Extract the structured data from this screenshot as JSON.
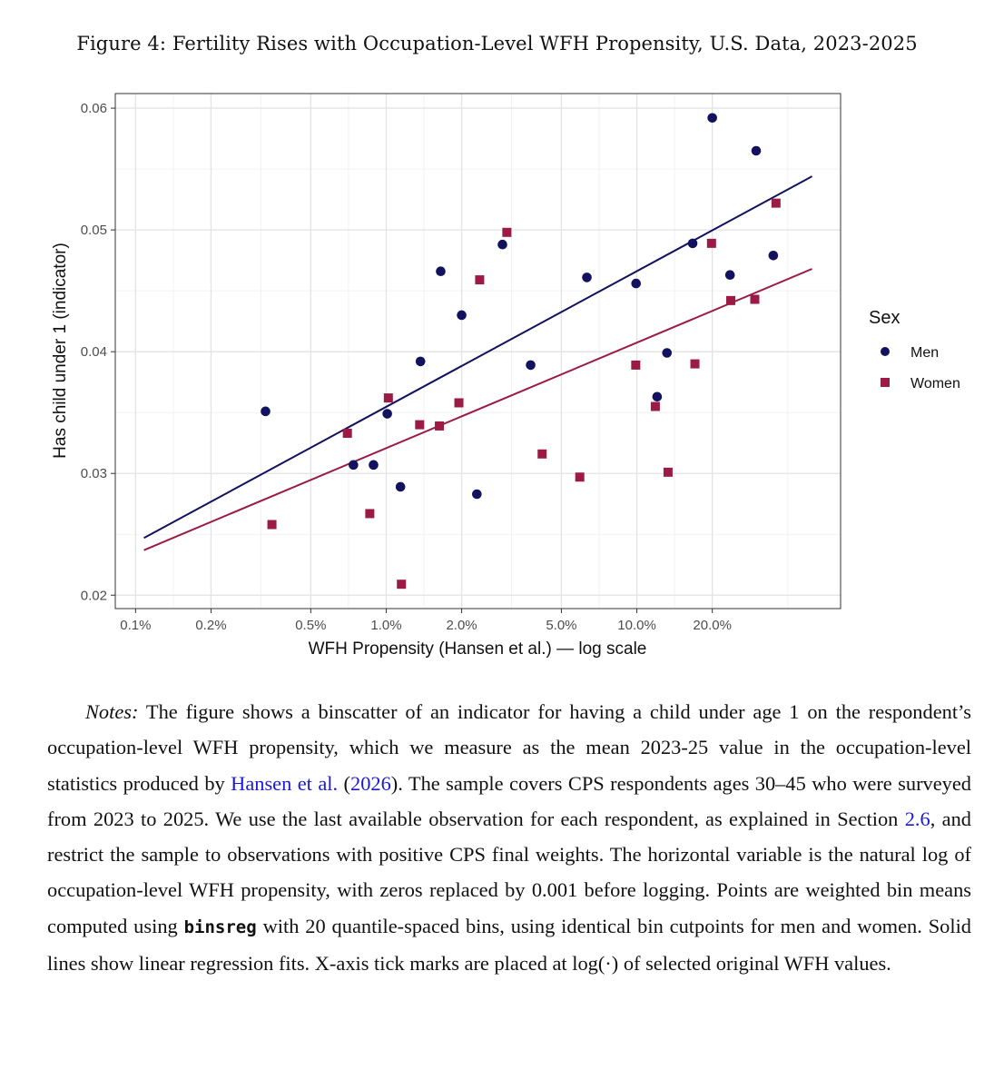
{
  "figure": {
    "caption": "Figure 4: Fertility Rises with Occupation-Level WFH Propensity, U.S. Data, 2023-2025"
  },
  "chart_data": {
    "type": "scatter",
    "title": "",
    "xlabel": "WFH Propensity (Hansen et al.) — log scale",
    "ylabel": "Has child under 1 (indicator)",
    "x_scale": "log",
    "xlim": [
      0.00083,
      0.65
    ],
    "ylim": [
      0.0189,
      0.0612
    ],
    "x_ticks": [
      0.001,
      0.002,
      0.005,
      0.01,
      0.02,
      0.05,
      0.1,
      0.2
    ],
    "x_tick_labels": [
      "0.1%",
      "0.2%",
      "0.5%",
      "1.0%",
      "2.0%",
      "5.0%",
      "10.0%",
      "20.0%"
    ],
    "y_ticks": [
      0.02,
      0.03,
      0.04,
      0.05,
      0.06
    ],
    "y_tick_labels": [
      "0.02",
      "0.03",
      "0.04",
      "0.05",
      "0.06"
    ],
    "grid": true,
    "legend": {
      "title": "Sex",
      "placement": "right"
    },
    "series": [
      {
        "name": "Men",
        "color": "#12125e",
        "marker": "circle",
        "points": [
          [
            0.0033,
            0.0351
          ],
          [
            0.0074,
            0.0307
          ],
          [
            0.0089,
            0.0307
          ],
          [
            0.0101,
            0.0349
          ],
          [
            0.0114,
            0.0289
          ],
          [
            0.0137,
            0.0392
          ],
          [
            0.0165,
            0.0466
          ],
          [
            0.02,
            0.043
          ],
          [
            0.023,
            0.0283
          ],
          [
            0.0291,
            0.0488
          ],
          [
            0.0377,
            0.0389
          ],
          [
            0.0632,
            0.0461
          ],
          [
            0.0993,
            0.0456
          ],
          [
            0.1205,
            0.0363
          ],
          [
            0.1319,
            0.0399
          ],
          [
            0.167,
            0.0489
          ],
          [
            0.2,
            0.0592
          ],
          [
            0.2354,
            0.0463
          ],
          [
            0.2993,
            0.0565
          ],
          [
            0.3503,
            0.0479
          ]
        ],
        "fit": {
          "x": [
            0.00108,
            0.5
          ],
          "y": [
            0.0247,
            0.0544
          ]
        }
      },
      {
        "name": "Women",
        "color": "#9b1b45",
        "marker": "square",
        "points": [
          [
            0.0035,
            0.0258
          ],
          [
            0.007,
            0.0333
          ],
          [
            0.0086,
            0.0267
          ],
          [
            0.0102,
            0.0362
          ],
          [
            0.0115,
            0.0209
          ],
          [
            0.0136,
            0.034
          ],
          [
            0.0163,
            0.0339
          ],
          [
            0.0195,
            0.0358
          ],
          [
            0.0236,
            0.0459
          ],
          [
            0.0303,
            0.0498
          ],
          [
            0.0419,
            0.0316
          ],
          [
            0.0592,
            0.0297
          ],
          [
            0.099,
            0.0389
          ],
          [
            0.1185,
            0.0355
          ],
          [
            0.1332,
            0.0301
          ],
          [
            0.1705,
            0.039
          ],
          [
            0.1986,
            0.0489
          ],
          [
            0.237,
            0.0442
          ],
          [
            0.2955,
            0.0443
          ],
          [
            0.359,
            0.0522
          ]
        ],
        "fit": {
          "x": [
            0.00108,
            0.5
          ],
          "y": [
            0.0237,
            0.0468
          ]
        }
      }
    ]
  },
  "notes": {
    "label": "Notes:",
    "part1": " The figure shows a binscatter of an indicator for having a child under age 1 on the respondent’s occupation-level WFH propensity, which we measure as the mean 2023-25 value in the occupation-level statistics produced by ",
    "ref_author": "Hansen et al.",
    "paren_open": " (",
    "ref_year": "2026",
    "part2": "). The sample covers CPS respondents ages 30–45 who were surveyed from 2023 to 2025. We use the last available observation for each respondent, as explained in Section ",
    "ref_section": "2.6",
    "part3": ", and restrict the sample to observations with positive CPS final weights. The horizontal variable is the natural log of occupation-level WFH propensity, with zeros replaced by 0.001 before logging. Points are weighted bin means computed using ",
    "code": "binsreg",
    "part4": " with 20 quantile-spaced bins, using identical bin cutpoints for men and women. Solid lines show linear regression fits. X-axis tick marks are placed at log(·) of selected original WFH values."
  }
}
